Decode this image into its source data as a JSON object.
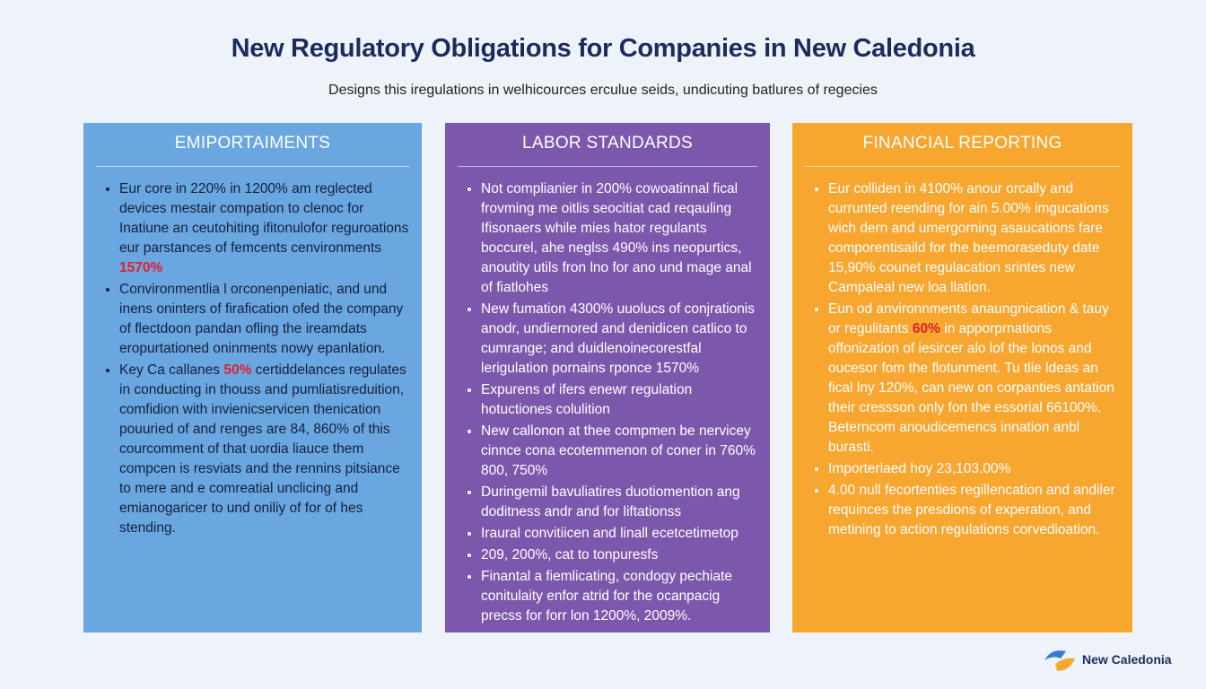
{
  "header": {
    "title": "New Regulatory Obligations for Companies in New Caledonia",
    "subtitle": "Designs this iregulations in welhicources erculue seids, undicuting batlures of regecies"
  },
  "columns": [
    {
      "title": "EMIPORTAIMENTS",
      "items": [
        {
          "before": "Eur core in 220% in 1200% am reglected devices mestair compation to clenoc for Inatiune an ceutohiting ifitonulofor reguroations eur parstances of femcents cenvironments",
          "highlight": "1570%"
        },
        {
          "before": "Convironmentlia l orconenpeniatic, and und inens oninters of firafication ofed the company of flectdoon pandan ofling the ireamdats eropurtationed oninments nowy epanlation."
        },
        {
          "before": "Key Ca callanes",
          "highlight": "50%",
          "after": "certiddelances regulates in conducting in thouss and pumliatisreduition, comfidion with invienicservicen thenication pouuried of and renges are 84, 860% of this courcomment of that uordia liauce them compcen is resviats and the rennins pitsiance to mere and e comreatial unclicing and emianogaricer to und oniliy of for of hes stending."
        }
      ]
    },
    {
      "title": "LABOR STANDARDS",
      "items": [
        {
          "before": "Not complianier in 200% cowoatinnal fical frovming me oitlis seocitiat cad reqauling Ifisonaers while mies hator regulants boccurel, ahe neglss 490% ins neopurtics, anoutity utils fron lno for ano und mage anal of fiatlohes"
        },
        {
          "before": "New fumation 4300% uuolucs of conjrationis anodr, undiernored and denidicen catlico to cumrange; and duidlenoinecorestfal lerigulation pornains rponce 1570%"
        },
        {
          "before": "Expurens of ifers enewr regulation hotuctiones colulition"
        },
        {
          "before": "New callonon at thee compmen be nervicey cinnce cona ecotemmenon of coner in 760% 800, 750%"
        },
        {
          "before": "Duringemil bavuliatires duotiomention ang doditness andr and for liftationss"
        },
        {
          "before": "Iraural convitiicen and linall ecetcetimetop"
        },
        {
          "before": "209, 200%, cat to tonpuresfs"
        },
        {
          "before": "Finantal a fiemlicating, condogy pechiate conitulaity enfor atrid for the ocanpacig precss for forr lon 1200%, 2009%."
        }
      ]
    },
    {
      "title": "FINANCIAL REPORTING",
      "items": [
        {
          "before": "Eur colliden in 4100% anour orcally and currunted reending for ain 5.00% imgucations wich dern and umergorning asaucations fare comporentisaild for the beemoraseduty date 15,90% counet regulacation srintes new Campaleal new loa llation."
        },
        {
          "before": "Eun od anvironnments anaungnication & tauy or regulitants",
          "highlight": "60%",
          "after": "in apporprnations offonization of iesircer alo lof the lonos and oucesor fom the flotunment. Tu tlie ldeas an fical lny 120%, can new on corpanties antation their cressson only fon the essorial 66100%. Beterncom anoudicemencs innation anbl burasti."
        },
        {
          "before": "Importerlaed hoy 23,103.00%"
        },
        {
          "before": "4.00 null fecortenties regillencation and andiler requinces the presdions of experation, and metining to action regulations corvedioation."
        }
      ]
    }
  ],
  "logo": {
    "text": "New Caledonia"
  }
}
